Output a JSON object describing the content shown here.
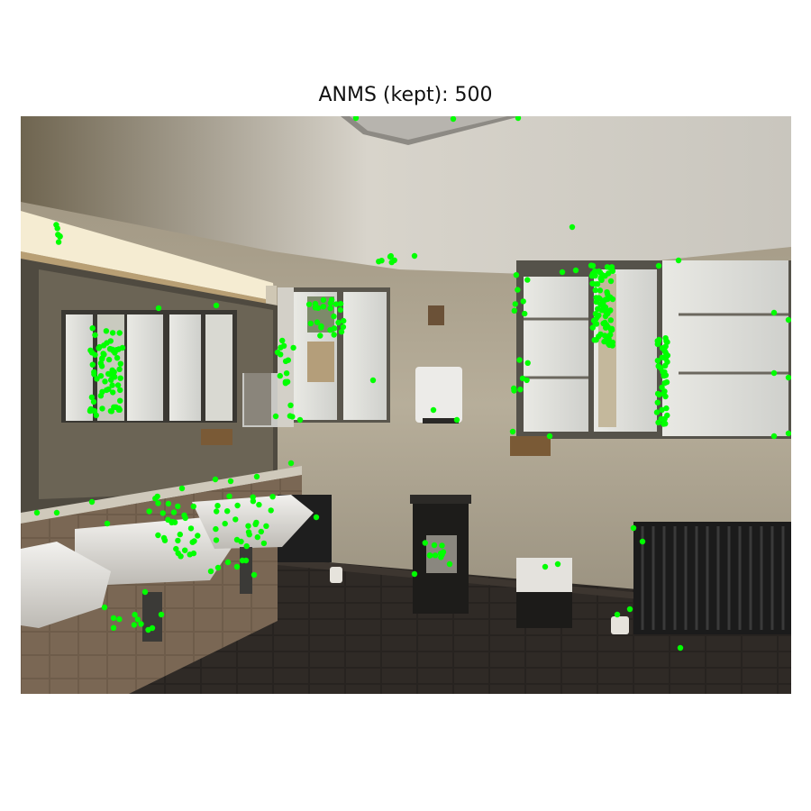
{
  "figure": {
    "title": "ANMS (kept): 500"
  },
  "keypoints": {
    "marker_color": "#00ff00"
  }
}
